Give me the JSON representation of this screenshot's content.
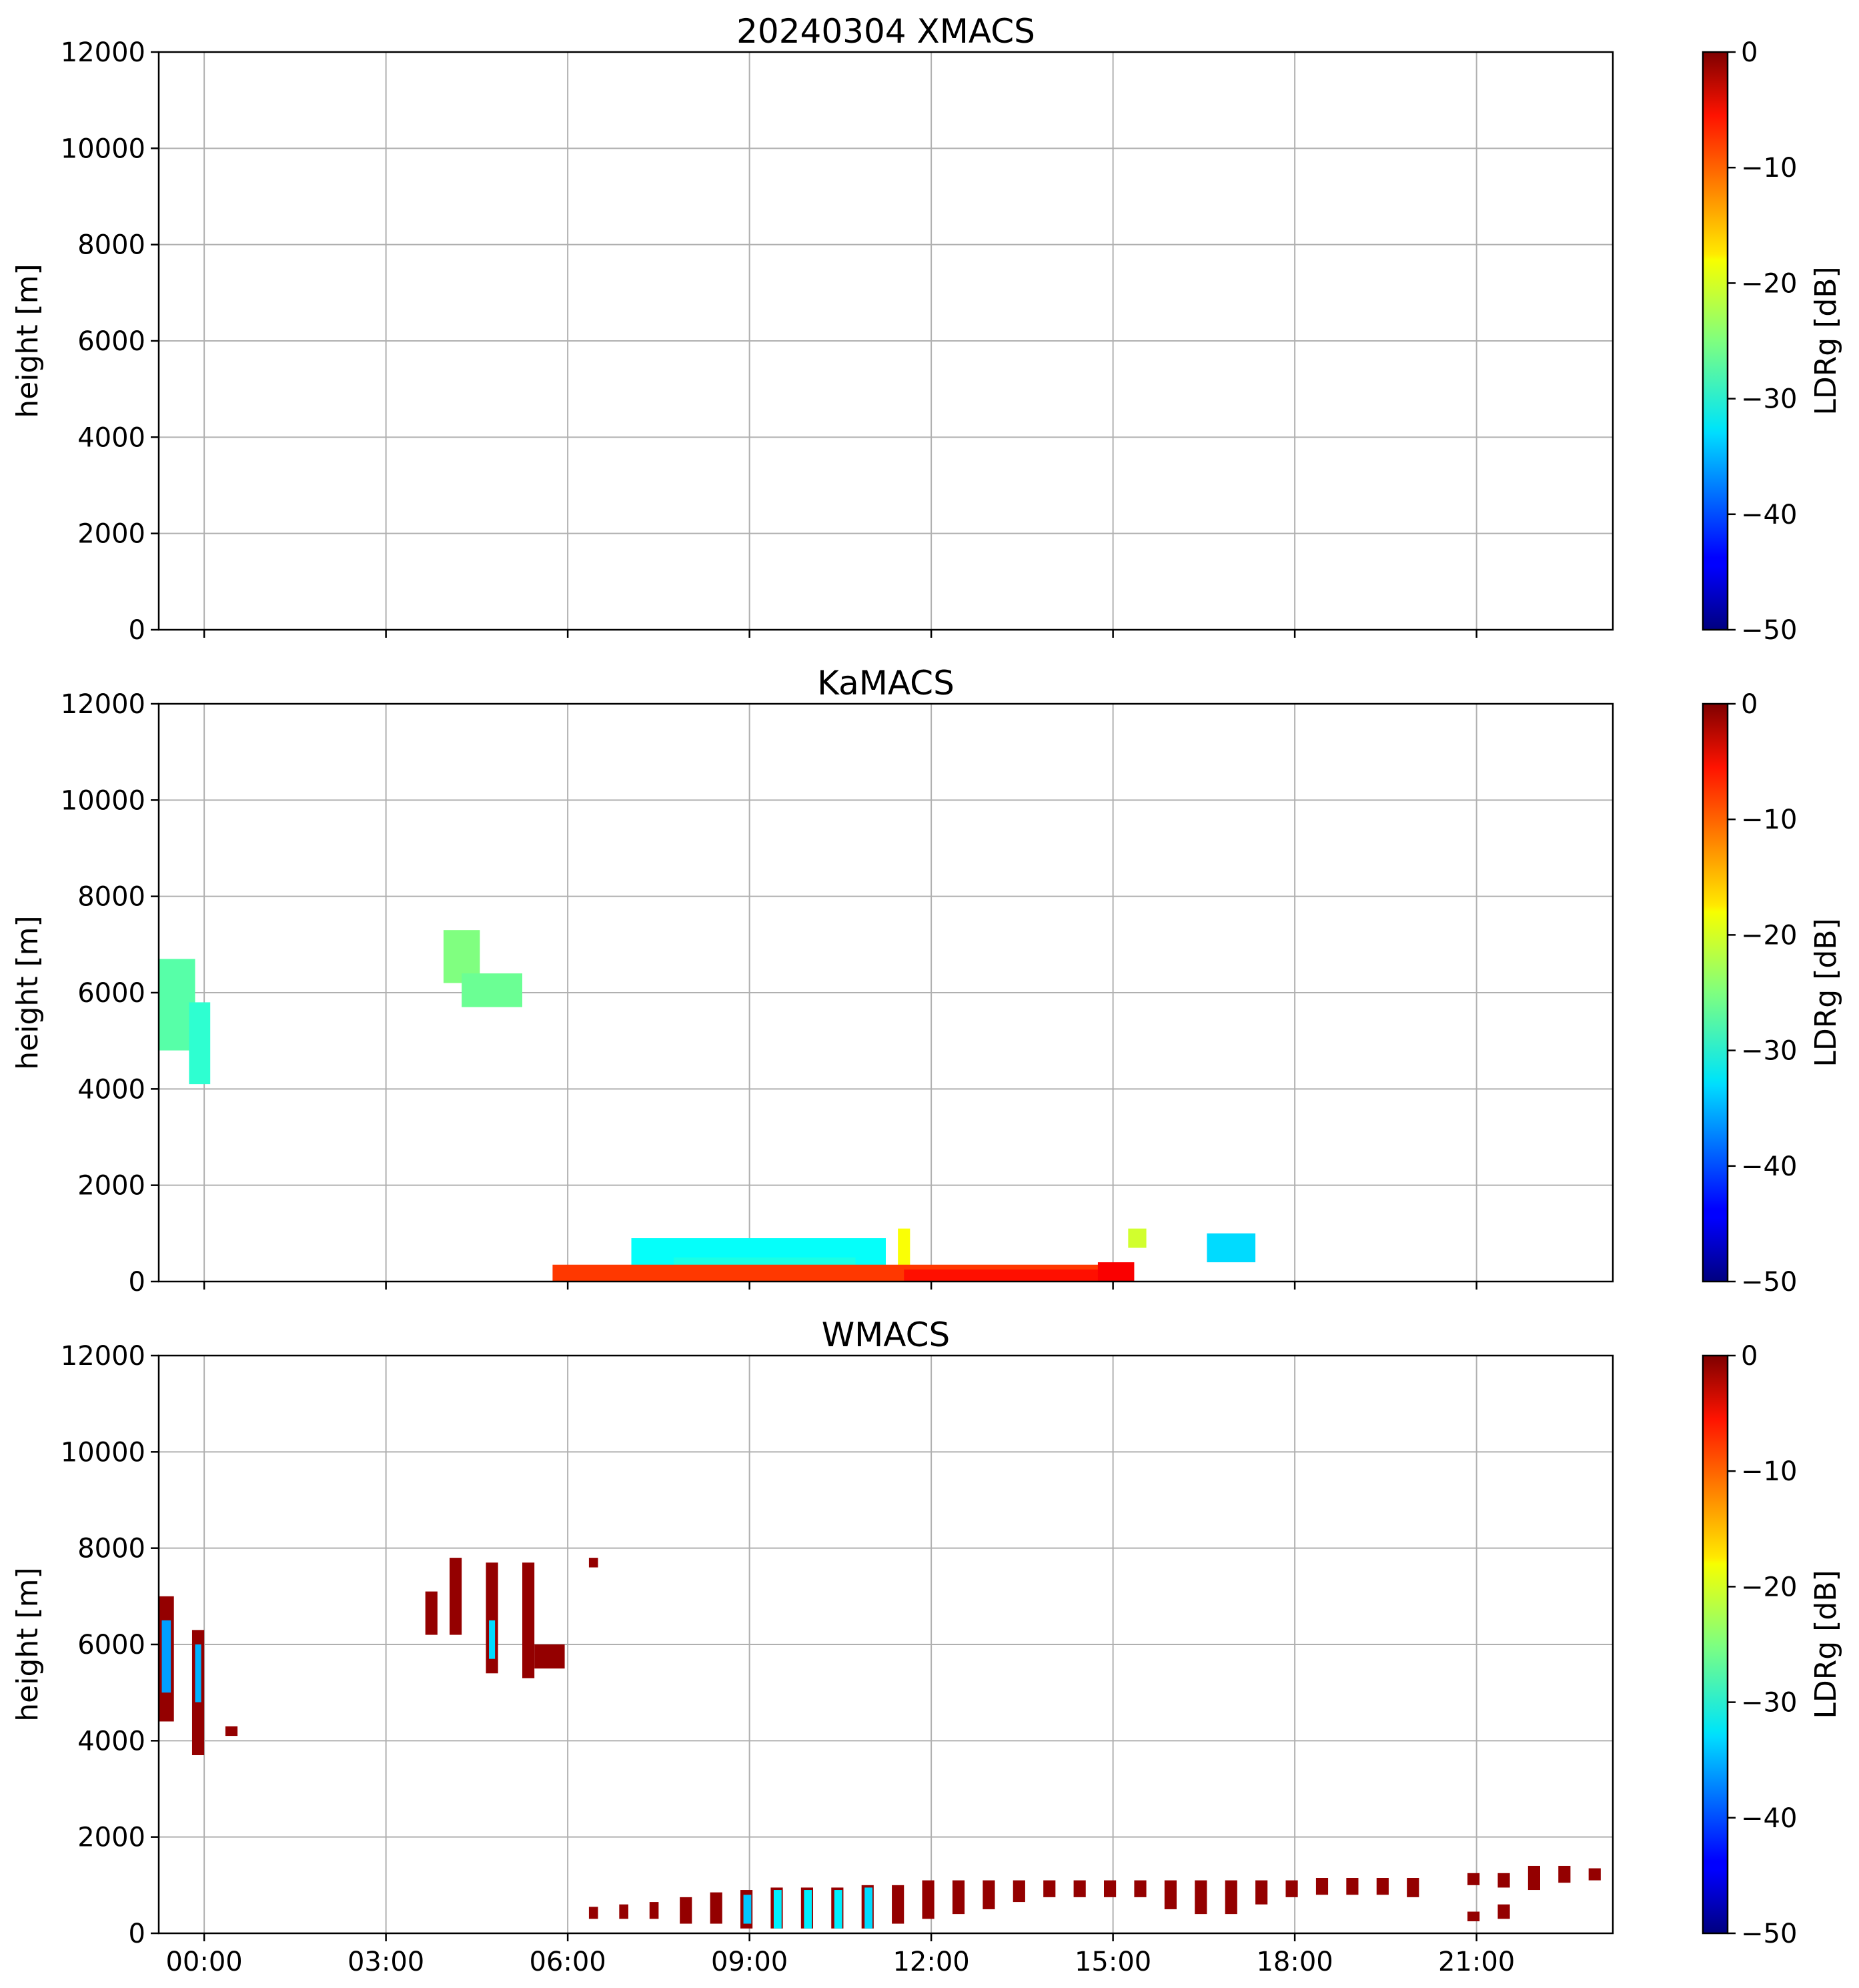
{
  "chart_data": [
    {
      "type": "heatmap",
      "panel": "XMACS",
      "title": "20240304 XMACS",
      "xlabel": "",
      "ylabel": "height [m]",
      "x_ticks_hours": [
        0.25,
        3.25,
        6.25,
        9.25,
        12.25,
        15.25,
        18.25,
        21.25
      ],
      "x_tick_labels": [],
      "xlim_hours": [
        -0.5,
        23.5
      ],
      "ylim": [
        0,
        12000
      ],
      "y_ticks": [
        0,
        2000,
        4000,
        6000,
        8000,
        10000,
        12000
      ],
      "y_tick_labels": [
        "0",
        "2000",
        "4000",
        "6000",
        "8000",
        "10000",
        "12000"
      ],
      "grid": true,
      "colorbar": {
        "label": "LDRg [dB]",
        "range": [
          -50,
          0
        ],
        "ticks": [
          "0",
          "−10",
          "−20",
          "−30",
          "−40",
          "−50"
        ],
        "tick_values": [
          0,
          -10,
          -20,
          -30,
          -40,
          -50
        ],
        "colormap": "jet"
      },
      "regions": []
    },
    {
      "type": "heatmap",
      "panel": "KaMACS",
      "title": "KaMACS",
      "xlabel": "",
      "ylabel": "height [m]",
      "x_ticks_hours": [
        0.25,
        3.25,
        6.25,
        9.25,
        12.25,
        15.25,
        18.25,
        21.25
      ],
      "x_tick_labels": [],
      "xlim_hours": [
        -0.5,
        23.5
      ],
      "ylim": [
        0,
        12000
      ],
      "y_ticks": [
        0,
        2000,
        4000,
        6000,
        8000,
        10000,
        12000
      ],
      "y_tick_labels": [
        "0",
        "2000",
        "4000",
        "6000",
        "8000",
        "10000",
        "12000"
      ],
      "grid": true,
      "colorbar": {
        "label": "LDRg [dB]",
        "range": [
          -50,
          0
        ],
        "ticks": [
          "0",
          "−10",
          "−20",
          "−30",
          "−40",
          "−50"
        ],
        "tick_values": [
          0,
          -10,
          -20,
          -30,
          -40,
          -50
        ],
        "colormap": "jet"
      },
      "regions": [
        {
          "t0": -0.5,
          "t1": 0.1,
          "h0": 4800,
          "h1": 6700,
          "ldr": -27
        },
        {
          "t0": 0.0,
          "t1": 0.35,
          "h0": 4100,
          "h1": 5800,
          "ldr": -29
        },
        {
          "t0": 4.2,
          "t1": 4.8,
          "h0": 6200,
          "h1": 7300,
          "ldr": -25
        },
        {
          "t0": 4.5,
          "t1": 5.5,
          "h0": 5700,
          "h1": 6400,
          "ldr": -26
        },
        {
          "t0": 7.3,
          "t1": 11.5,
          "h0": 250,
          "h1": 900,
          "ldr": -31
        },
        {
          "t0": 8.0,
          "t1": 11.0,
          "h0": 150,
          "h1": 500,
          "ldr": -30
        },
        {
          "t0": 11.7,
          "t1": 11.9,
          "h0": 100,
          "h1": 1100,
          "ldr": -19
        },
        {
          "t0": 15.5,
          "t1": 15.8,
          "h0": 700,
          "h1": 1100,
          "ldr": -21
        },
        {
          "t0": 16.8,
          "t1": 17.6,
          "h0": 400,
          "h1": 1000,
          "ldr": -33
        },
        {
          "t0": 6.0,
          "t1": 15.5,
          "h0": 0,
          "h1": 350,
          "ldr": -9
        },
        {
          "t0": 11.8,
          "t1": 15.2,
          "h0": 0,
          "h1": 250,
          "ldr": -7
        },
        {
          "t0": 15.0,
          "t1": 15.6,
          "h0": 0,
          "h1": 400,
          "ldr": -6
        }
      ]
    },
    {
      "type": "heatmap",
      "panel": "WMACS",
      "title": "WMACS",
      "xlabel": "",
      "ylabel": "height [m]",
      "x_ticks_hours": [
        0.25,
        3.25,
        6.25,
        9.25,
        12.25,
        15.25,
        18.25,
        21.25
      ],
      "x_tick_labels": [
        "00:00",
        "03:00",
        "06:00",
        "09:00",
        "12:00",
        "15:00",
        "18:00",
        "21:00"
      ],
      "xlim_hours": [
        -0.5,
        23.5
      ],
      "ylim": [
        0,
        12000
      ],
      "y_ticks": [
        0,
        2000,
        4000,
        6000,
        8000,
        10000,
        12000
      ],
      "y_tick_labels": [
        "0",
        "2000",
        "4000",
        "6000",
        "8000",
        "10000",
        "12000"
      ],
      "grid": true,
      "colorbar": {
        "label": "LDRg [dB]",
        "range": [
          -50,
          0
        ],
        "ticks": [
          "0",
          "−10",
          "−20",
          "−30",
          "−40",
          "−50"
        ],
        "tick_values": [
          0,
          -10,
          -20,
          -30,
          -40,
          -50
        ],
        "colormap": "jet"
      },
      "regions": [
        {
          "t0": -0.5,
          "t1": -0.25,
          "h0": 4400,
          "h1": 7000,
          "ldr": -1
        },
        {
          "t0": -0.45,
          "t1": -0.3,
          "h0": 5000,
          "h1": 6500,
          "ldr": -36
        },
        {
          "t0": 0.05,
          "t1": 0.25,
          "h0": 3700,
          "h1": 6300,
          "ldr": -1
        },
        {
          "t0": 0.1,
          "t1": 0.2,
          "h0": 4800,
          "h1": 6000,
          "ldr": -35
        },
        {
          "t0": 0.6,
          "t1": 0.8,
          "h0": 4100,
          "h1": 4300,
          "ldr": -1
        },
        {
          "t0": 3.9,
          "t1": 4.1,
          "h0": 6200,
          "h1": 7100,
          "ldr": -1
        },
        {
          "t0": 4.3,
          "t1": 4.5,
          "h0": 6200,
          "h1": 7800,
          "ldr": -1
        },
        {
          "t0": 4.9,
          "t1": 5.1,
          "h0": 5400,
          "h1": 7700,
          "ldr": -1
        },
        {
          "t0": 4.95,
          "t1": 5.05,
          "h0": 5700,
          "h1": 6500,
          "ldr": -33
        },
        {
          "t0": 5.5,
          "t1": 5.7,
          "h0": 5300,
          "h1": 7700,
          "ldr": -1
        },
        {
          "t0": 5.7,
          "t1": 6.2,
          "h0": 5500,
          "h1": 6000,
          "ldr": -1
        },
        {
          "t0": 6.6,
          "t1": 6.75,
          "h0": 7600,
          "h1": 7800,
          "ldr": -1
        },
        {
          "t0": 6.6,
          "t1": 6.75,
          "h0": 300,
          "h1": 550,
          "ldr": -1
        },
        {
          "t0": 7.1,
          "t1": 7.25,
          "h0": 300,
          "h1": 600,
          "ldr": -1
        },
        {
          "t0": 7.6,
          "t1": 7.75,
          "h0": 300,
          "h1": 650,
          "ldr": -1
        },
        {
          "t0": 8.1,
          "t1": 8.3,
          "h0": 200,
          "h1": 750,
          "ldr": -1
        },
        {
          "t0": 8.6,
          "t1": 8.8,
          "h0": 200,
          "h1": 850,
          "ldr": -1
        },
        {
          "t0": 9.1,
          "t1": 9.3,
          "h0": 100,
          "h1": 900,
          "ldr": -1
        },
        {
          "t0": 9.15,
          "t1": 9.28,
          "h0": 200,
          "h1": 800,
          "ldr": -34
        },
        {
          "t0": 9.6,
          "t1": 9.8,
          "h0": 100,
          "h1": 950,
          "ldr": -1
        },
        {
          "t0": 9.65,
          "t1": 9.78,
          "h0": 100,
          "h1": 900,
          "ldr": -32
        },
        {
          "t0": 10.1,
          "t1": 10.3,
          "h0": 100,
          "h1": 950,
          "ldr": -1
        },
        {
          "t0": 10.15,
          "t1": 10.28,
          "h0": 100,
          "h1": 900,
          "ldr": -32
        },
        {
          "t0": 10.6,
          "t1": 10.8,
          "h0": 100,
          "h1": 950,
          "ldr": -1
        },
        {
          "t0": 10.65,
          "t1": 10.78,
          "h0": 100,
          "h1": 900,
          "ldr": -32
        },
        {
          "t0": 11.1,
          "t1": 11.3,
          "h0": 100,
          "h1": 1000,
          "ldr": -1
        },
        {
          "t0": 11.15,
          "t1": 11.28,
          "h0": 100,
          "h1": 950,
          "ldr": -33
        },
        {
          "t0": 11.6,
          "t1": 11.8,
          "h0": 200,
          "h1": 1000,
          "ldr": -1
        },
        {
          "t0": 12.1,
          "t1": 12.3,
          "h0": 300,
          "h1": 1100,
          "ldr": -1
        },
        {
          "t0": 12.6,
          "t1": 12.8,
          "h0": 400,
          "h1": 1100,
          "ldr": -1
        },
        {
          "t0": 13.1,
          "t1": 13.3,
          "h0": 500,
          "h1": 1100,
          "ldr": -1
        },
        {
          "t0": 13.6,
          "t1": 13.8,
          "h0": 650,
          "h1": 1100,
          "ldr": -1
        },
        {
          "t0": 14.1,
          "t1": 14.3,
          "h0": 750,
          "h1": 1100,
          "ldr": -1
        },
        {
          "t0": 14.6,
          "t1": 14.8,
          "h0": 750,
          "h1": 1100,
          "ldr": -1
        },
        {
          "t0": 15.1,
          "t1": 15.3,
          "h0": 750,
          "h1": 1100,
          "ldr": -1
        },
        {
          "t0": 15.6,
          "t1": 15.8,
          "h0": 750,
          "h1": 1100,
          "ldr": -1
        },
        {
          "t0": 16.1,
          "t1": 16.3,
          "h0": 500,
          "h1": 1100,
          "ldr": -1
        },
        {
          "t0": 16.6,
          "t1": 16.8,
          "h0": 400,
          "h1": 1100,
          "ldr": -1
        },
        {
          "t0": 17.1,
          "t1": 17.3,
          "h0": 400,
          "h1": 1100,
          "ldr": -1
        },
        {
          "t0": 17.6,
          "t1": 17.8,
          "h0": 600,
          "h1": 1100,
          "ldr": -1
        },
        {
          "t0": 18.1,
          "t1": 18.3,
          "h0": 750,
          "h1": 1100,
          "ldr": -1
        },
        {
          "t0": 18.6,
          "t1": 18.8,
          "h0": 800,
          "h1": 1150,
          "ldr": -1
        },
        {
          "t0": 19.1,
          "t1": 19.3,
          "h0": 800,
          "h1": 1150,
          "ldr": -1
        },
        {
          "t0": 19.6,
          "t1": 19.8,
          "h0": 800,
          "h1": 1150,
          "ldr": -1
        },
        {
          "t0": 20.1,
          "t1": 20.3,
          "h0": 750,
          "h1": 1150,
          "ldr": -1
        },
        {
          "t0": 21.1,
          "t1": 21.3,
          "h0": 1000,
          "h1": 1250,
          "ldr": -1
        },
        {
          "t0": 21.1,
          "t1": 21.3,
          "h0": 250,
          "h1": 450,
          "ldr": -1
        },
        {
          "t0": 21.6,
          "t1": 21.8,
          "h0": 950,
          "h1": 1250,
          "ldr": -1
        },
        {
          "t0": 21.6,
          "t1": 21.8,
          "h0": 300,
          "h1": 600,
          "ldr": -1
        },
        {
          "t0": 22.1,
          "t1": 22.3,
          "h0": 900,
          "h1": 1400,
          "ldr": -1
        },
        {
          "t0": 22.6,
          "t1": 22.8,
          "h0": 1050,
          "h1": 1400,
          "ldr": -1
        },
        {
          "t0": 23.1,
          "t1": 23.3,
          "h0": 1100,
          "h1": 1350,
          "ldr": -1
        }
      ]
    }
  ]
}
